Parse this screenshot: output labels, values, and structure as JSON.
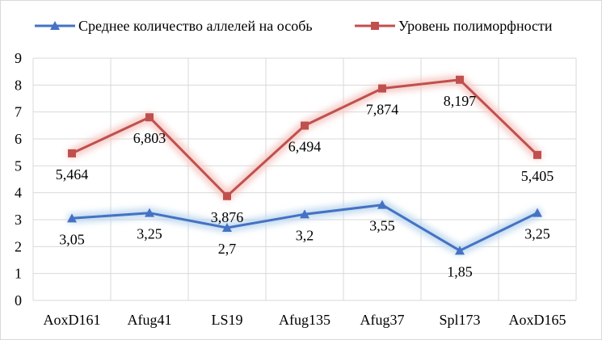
{
  "chart_data": {
    "type": "line",
    "categories": [
      "AoxD161",
      "Afug41",
      "LS19",
      "Afug135",
      "Afug37",
      "Spl173",
      "AoxD165"
    ],
    "series": [
      {
        "name": "Среднее количество аллелей на особь",
        "values": [
          3.05,
          3.25,
          2.7,
          3.2,
          3.55,
          1.85,
          3.25
        ],
        "labels": [
          "3,05",
          "3,25",
          "2,7",
          "3,2",
          "3,55",
          "1,85",
          "3,25"
        ],
        "color": "#4472c4",
        "glow": "#bdd7ee",
        "marker": "triangle",
        "label_position": "below"
      },
      {
        "name": "Уровень полиморфности",
        "values": [
          5.464,
          6.803,
          3.876,
          6.494,
          7.874,
          8.197,
          5.405
        ],
        "labels": [
          "5,464",
          "6,803",
          "3,876",
          "6,494",
          "7,874",
          "8,197",
          "5,405"
        ],
        "color": "#c0504d",
        "glow": "#f4c7c3",
        "marker": "square",
        "label_position": "below"
      }
    ],
    "ylim": [
      0,
      9
    ],
    "y_ticks": [
      "0",
      "1",
      "2",
      "3",
      "4",
      "5",
      "6",
      "7",
      "8",
      "9"
    ],
    "grid": true,
    "legend_position": "top"
  }
}
